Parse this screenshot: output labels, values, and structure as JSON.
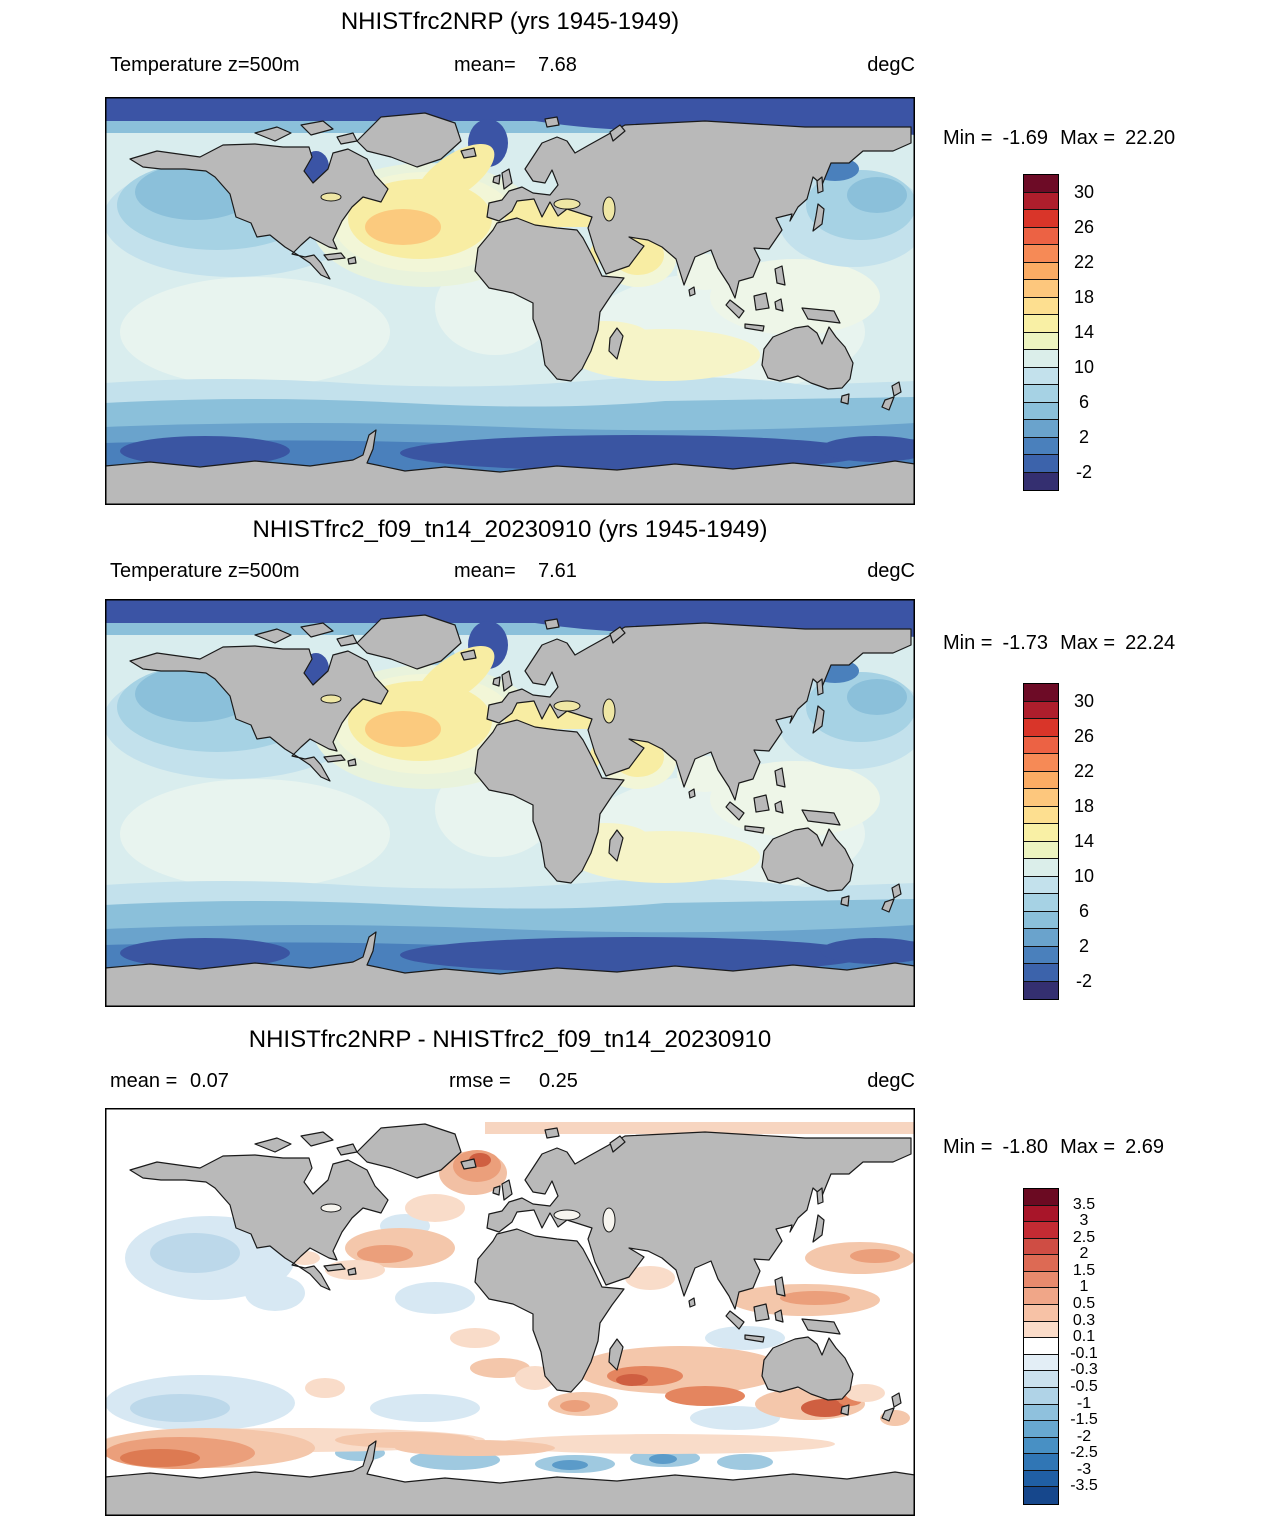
{
  "figure": {
    "panels": [
      {
        "title": "NHISTfrc2NRP (yrs 1945-1949)",
        "field_label": "Temperature z=500m",
        "mean_label": "mean=",
        "mean_value": "7.68",
        "units": "degC",
        "min_label": "Min =",
        "min_value": "-1.69",
        "max_label": "Max =",
        "max_value": "22.20"
      },
      {
        "title": "NHISTfrc2_f09_tn14_20230910 (yrs 1945-1949)",
        "field_label": "Temperature z=500m",
        "mean_label": "mean=",
        "mean_value": "7.61",
        "units": "degC",
        "min_label": "Min =",
        "min_value": "-1.73",
        "max_label": "Max =",
        "max_value": "22.24"
      },
      {
        "title": "NHISTfrc2NRP - NHISTfrc2_f09_tn14_20230910",
        "mean_label": "mean =",
        "mean_value": "0.07",
        "rmse_label": "rmse =",
        "rmse_value": "0.25",
        "units": "degC",
        "min_label": "Min =",
        "min_value": "-1.80",
        "max_label": "Max =",
        "max_value": "2.69"
      }
    ],
    "colorbars": [
      {
        "cells": [
          "#6d0b26",
          "#ae1e2c",
          "#d93529",
          "#ec6244",
          "#f68a56",
          "#fbac64",
          "#fdc77d",
          "#fddf90",
          "#f9f0a5",
          "#edf4c0",
          "#dbeeea",
          "#c3e1ec",
          "#a6d2e4",
          "#8bc0da",
          "#6aa3cc",
          "#4a80bc",
          "#3c63ab",
          "#342f70"
        ],
        "labels": [
          {
            "text": "30",
            "b": 1
          },
          {
            "text": "26",
            "b": 3
          },
          {
            "text": "22",
            "b": 5
          },
          {
            "text": "18",
            "b": 7
          },
          {
            "text": "14",
            "b": 9
          },
          {
            "text": "10",
            "b": 11
          },
          {
            "text": "6",
            "b": 13
          },
          {
            "text": "2",
            "b": 15
          },
          {
            "text": "-2",
            "b": 17
          }
        ]
      },
      {
        "cells": [
          "#6d0b26",
          "#ae1e2c",
          "#d93529",
          "#ec6244",
          "#f68a56",
          "#fbac64",
          "#fdc77d",
          "#fddf90",
          "#f9f0a5",
          "#edf4c0",
          "#dbeeea",
          "#c3e1ec",
          "#a6d2e4",
          "#8bc0da",
          "#6aa3cc",
          "#4a80bc",
          "#3c63ab",
          "#342f70"
        ],
        "labels": [
          {
            "text": "30",
            "b": 1
          },
          {
            "text": "26",
            "b": 3
          },
          {
            "text": "22",
            "b": 5
          },
          {
            "text": "18",
            "b": 7
          },
          {
            "text": "14",
            "b": 9
          },
          {
            "text": "10",
            "b": 11
          },
          {
            "text": "6",
            "b": 13
          },
          {
            "text": "2",
            "b": 15
          },
          {
            "text": "-2",
            "b": 17
          }
        ]
      },
      {
        "cells": [
          "#6b0a22",
          "#a81529",
          "#c32b33",
          "#cf4d44",
          "#dd6a54",
          "#e88a6d",
          "#f0a688",
          "#f7c2a6",
          "#fbdcc9",
          "#ffffff",
          "#e3eef6",
          "#cbe1ee",
          "#b0d3e7",
          "#8fc1dd",
          "#68a8d0",
          "#4890c4",
          "#3076b5",
          "#205fa4",
          "#16478c"
        ],
        "labels": [
          {
            "text": "3.5",
            "b": 1
          },
          {
            "text": "3",
            "b": 2
          },
          {
            "text": "2.5",
            "b": 3
          },
          {
            "text": "2",
            "b": 4
          },
          {
            "text": "1.5",
            "b": 5
          },
          {
            "text": "1",
            "b": 6
          },
          {
            "text": "0.5",
            "b": 7
          },
          {
            "text": "0.3",
            "b": 8
          },
          {
            "text": "0.1",
            "b": 9
          },
          {
            "text": "-0.1",
            "b": 10
          },
          {
            "text": "-0.3",
            "b": 11
          },
          {
            "text": "-0.5",
            "b": 12
          },
          {
            "text": "-1",
            "b": 13
          },
          {
            "text": "-1.5",
            "b": 14
          },
          {
            "text": "-2",
            "b": 15
          },
          {
            "text": "-2.5",
            "b": 16
          },
          {
            "text": "-3",
            "b": 17
          },
          {
            "text": "-3.5",
            "b": 18
          }
        ]
      }
    ],
    "colors": {
      "land": "#b9b9b9",
      "coastline": "#1a1a1a",
      "map_border": "#000000",
      "ocean_base": "#d9edee",
      "arctic_band": "#3b54a5",
      "southern_navy": "#3a55a2",
      "atlantic_yellow": "#f8eda3",
      "gulf_stream_core": "#fbca7e",
      "diff_base": "#ffffff",
      "diff_warm": "#f2c0a4",
      "diff_warm_core": "#cf5f41",
      "diff_cool": "#d7e8f3"
    }
  },
  "chart_data": [
    {
      "type": "heatmap",
      "subtype": "filled-contour-world-map",
      "title": "NHISTfrc2NRP (yrs 1945-1949)",
      "variable": "Temperature",
      "depth": "z=500m",
      "units": "degC",
      "mean": 7.68,
      "min": -1.69,
      "max": 22.2,
      "contour_levels": [
        -2,
        0,
        2,
        4,
        6,
        8,
        10,
        12,
        14,
        16,
        18,
        20,
        22,
        24,
        26,
        28,
        30
      ],
      "labeled_levels": [
        -2,
        2,
        6,
        10,
        14,
        18,
        22,
        26,
        30
      ],
      "palette": "dark-blue to yellow to dark-red, 18 classes",
      "legend_position": "right",
      "notes": "Global ocean temperature at 500 m depth; land masked gray; warm yellow pool in subtropical North Atlantic and Mediterranean; coldest (dark blue) in Arctic and Southern Ocean"
    },
    {
      "type": "heatmap",
      "subtype": "filled-contour-world-map",
      "title": "NHISTfrc2_f09_tn14_20230910 (yrs 1945-1949)",
      "variable": "Temperature",
      "depth": "z=500m",
      "units": "degC",
      "mean": 7.61,
      "min": -1.73,
      "max": 22.24,
      "contour_levels": [
        -2,
        0,
        2,
        4,
        6,
        8,
        10,
        12,
        14,
        16,
        18,
        20,
        22,
        24,
        26,
        28,
        30
      ],
      "labeled_levels": [
        -2,
        2,
        6,
        10,
        14,
        18,
        22,
        26,
        30
      ],
      "palette": "dark-blue to yellow to dark-red, 18 classes",
      "legend_position": "right",
      "notes": "Nearly identical spatial pattern to panel 1"
    },
    {
      "type": "heatmap",
      "subtype": "difference-world-map",
      "title": "NHISTfrc2NRP - NHISTfrc2_f09_tn14_20230910",
      "variable": "Temperature difference",
      "units": "degC",
      "mean": 0.07,
      "rmse": 0.25,
      "min": -1.8,
      "max": 2.69,
      "contour_levels": [
        -3.5,
        -3,
        -2.5,
        -2,
        -1.5,
        -1,
        -0.5,
        -0.3,
        -0.1,
        0.1,
        0.3,
        0.5,
        1,
        1.5,
        2,
        2.5,
        3,
        3.5
      ],
      "palette": "blue-white-red diverging, 19 classes",
      "legend_position": "right",
      "notes": "Mostly near-zero (white); warm (salmon/red) anomalies in Norwegian Sea, Gulf Stream, Kuroshio, south Indian Ocean, south of Australia, SE Pacific; cool (blue) patches in NE Pacific, South Pacific and near Antarctica"
    }
  ]
}
